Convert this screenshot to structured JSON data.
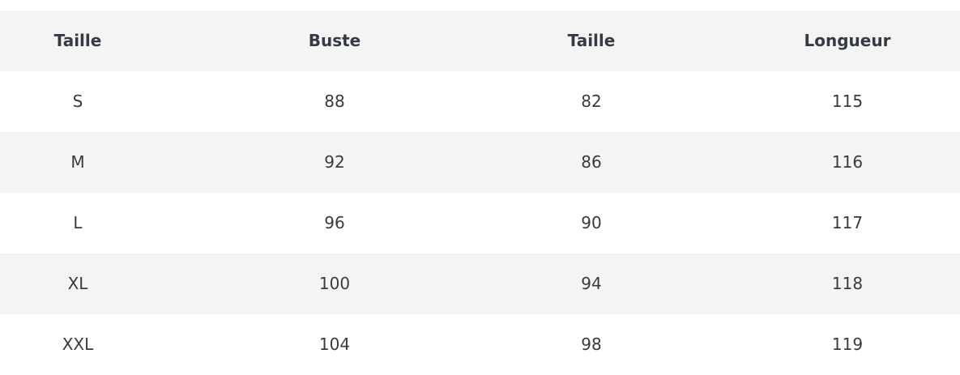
{
  "table": {
    "headers": [
      "Taille",
      "Buste",
      "Taille",
      "Longueur"
    ],
    "rows": [
      [
        "S",
        "88",
        "82",
        "115"
      ],
      [
        "M",
        "92",
        "86",
        "116"
      ],
      [
        "L",
        "96",
        "90",
        "117"
      ],
      [
        "XL",
        "100",
        "94",
        "118"
      ],
      [
        "XXL",
        "104",
        "98",
        "119"
      ]
    ]
  },
  "colors": {
    "row_shade": "#f4f4f4",
    "header_text": "#333a44",
    "body_text": "#3a3a3a"
  }
}
